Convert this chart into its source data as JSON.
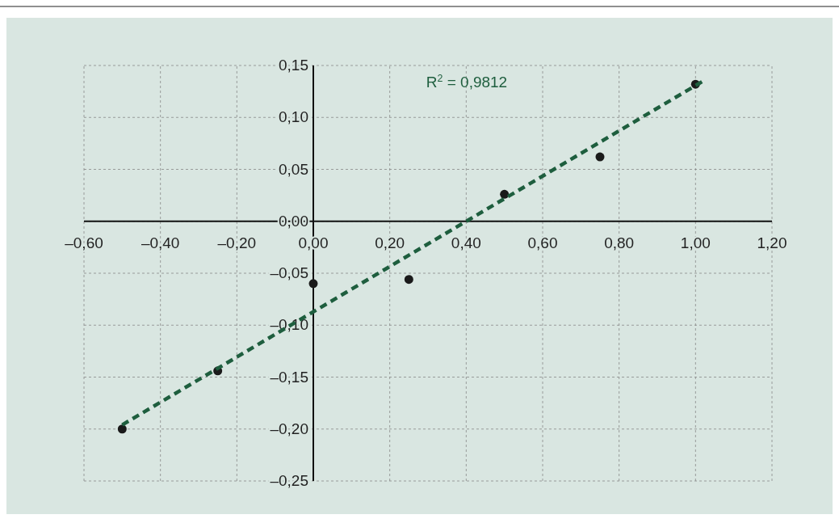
{
  "chart_data": {
    "type": "scatter",
    "xlim": [
      -0.6,
      1.2
    ],
    "ylim": [
      -0.25,
      0.15
    ],
    "xticks": [
      {
        "value": -0.6,
        "label": "–0,60"
      },
      {
        "value": -0.4,
        "label": "–0,40"
      },
      {
        "value": -0.2,
        "label": "–0,20"
      },
      {
        "value": 0,
        "label": "0,00"
      },
      {
        "value": 0.2,
        "label": "0,20"
      },
      {
        "value": 0.4,
        "label": "0,40"
      },
      {
        "value": 0.6,
        "label": "0,60"
      },
      {
        "value": 0.8,
        "label": "0,80"
      },
      {
        "value": 1,
        "label": "1,00"
      },
      {
        "value": 1.2,
        "label": "1,20"
      }
    ],
    "yticks": [
      {
        "value": -0.25,
        "label": "–0,25"
      },
      {
        "value": -0.2,
        "label": "–0,20"
      },
      {
        "value": -0.15,
        "label": "–0,15"
      },
      {
        "value": -0.1,
        "label": "–0,10"
      },
      {
        "value": -0.05,
        "label": "–0,05"
      },
      {
        "value": 0,
        "label": "0,00"
      },
      {
        "value": 0.05,
        "label": "0,05"
      },
      {
        "value": 0.1,
        "label": "0,10"
      },
      {
        "value": 0.15,
        "label": "0,15"
      }
    ],
    "grid": true,
    "annotations": [
      "R$^{2}$ = 0,9812"
    ],
    "series": [
      {
        "color": "#1a1a1a",
        "marker": "circle",
        "x": [
          -0.5,
          -0.25,
          0,
          0.25,
          0.5,
          0.75,
          1.0
        ],
        "values": [
          -0.2,
          -0.144,
          -0.06,
          -0.056,
          0.026,
          0.062,
          0.132
        ]
      },
      {
        "type": "line",
        "color": "#1e5e3e",
        "marker": "none",
        "line_style": "dashed",
        "x": [
          -0.5,
          1.02
        ],
        "values": [
          -0.196,
          0.135
        ]
      }
    ]
  }
}
